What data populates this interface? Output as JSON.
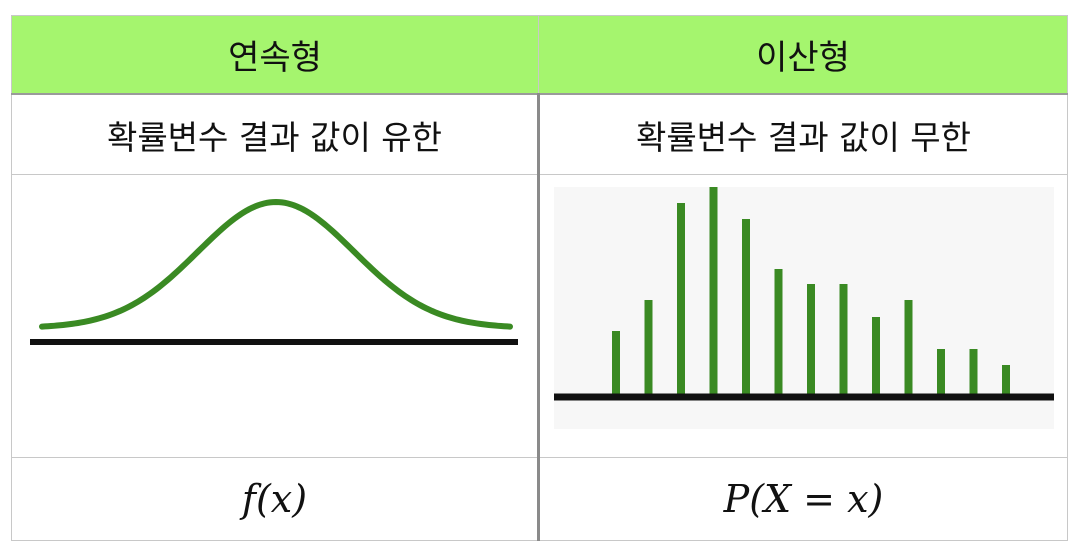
{
  "table": {
    "headers": [
      "연속형",
      "이산형"
    ],
    "description": [
      "확률변수 결과 값이 유한",
      "확률변수 결과 값이 무한"
    ],
    "formula": [
      "f(x)",
      "P(X = x)"
    ]
  },
  "chart_data": [
    {
      "type": "line",
      "curve": "normal-distribution",
      "color": "#3a8a23"
    },
    {
      "type": "bar",
      "values": [
        66,
        97,
        194,
        210,
        178,
        128,
        113,
        113,
        80,
        97,
        48,
        48,
        32
      ],
      "color": "#3a8a23"
    }
  ]
}
